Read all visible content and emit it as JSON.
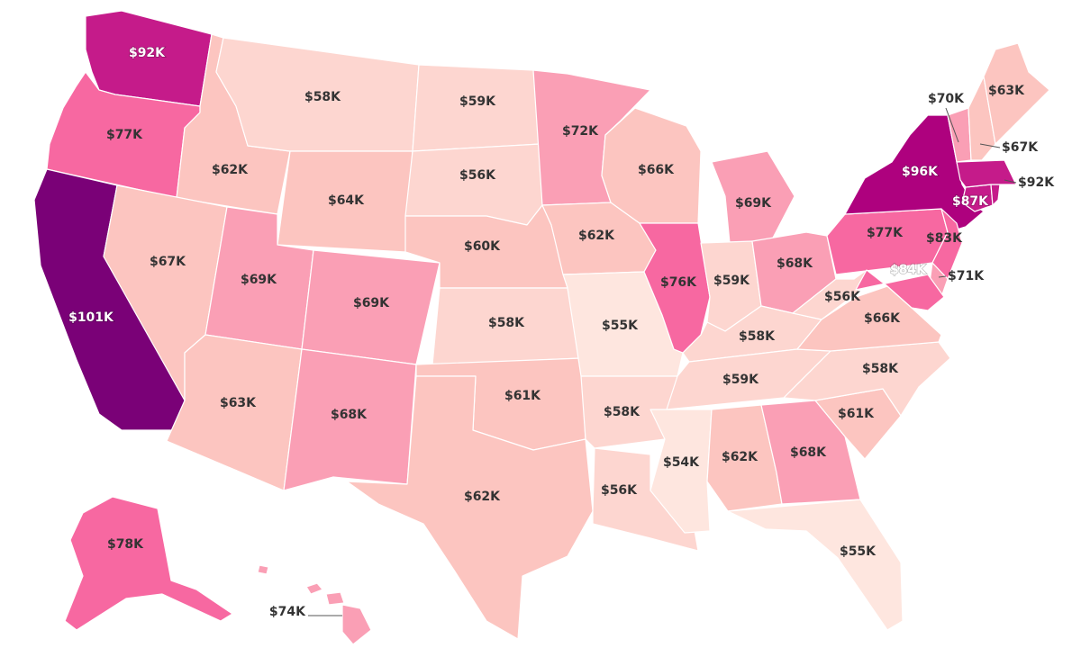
{
  "map": {
    "type": "choropleth",
    "region": "United States",
    "palette": {
      "darkest": "#7a0177",
      "very_high": "#ae017e",
      "high": "#c51b8a",
      "upper": "#f768a1",
      "mid": "#fa9fb5",
      "lower": "#fcc5c0",
      "low": "#fdd6d0",
      "lowest": "#fee6df",
      "border": "#ffffff",
      "label_dark": "#333333",
      "label_light": "#ffffff"
    },
    "states": {
      "WA": {
        "label": "$92K",
        "value": 92
      },
      "OR": {
        "label": "$77K",
        "value": 77
      },
      "CA": {
        "label": "$101K",
        "value": 101
      },
      "ID": {
        "label": "$62K",
        "value": 62
      },
      "NV": {
        "label": "$67K",
        "value": 67
      },
      "MT": {
        "label": "$58K",
        "value": 58
      },
      "WY": {
        "label": "$64K",
        "value": 64
      },
      "UT": {
        "label": "$69K",
        "value": 69
      },
      "AZ": {
        "label": "$63K",
        "value": 63
      },
      "CO": {
        "label": "$69K",
        "value": 69
      },
      "NM": {
        "label": "$68K",
        "value": 68
      },
      "ND": {
        "label": "$59K",
        "value": 59
      },
      "SD": {
        "label": "$56K",
        "value": 56
      },
      "NE": {
        "label": "$60K",
        "value": 60
      },
      "KS": {
        "label": "$58K",
        "value": 58
      },
      "OK": {
        "label": "$61K",
        "value": 61
      },
      "TX": {
        "label": "$62K",
        "value": 62
      },
      "MN": {
        "label": "$72K",
        "value": 72
      },
      "IA": {
        "label": "$62K",
        "value": 62
      },
      "MO": {
        "label": "$55K",
        "value": 55
      },
      "AR": {
        "label": "$58K",
        "value": 58
      },
      "LA": {
        "label": "$56K",
        "value": 56
      },
      "WI": {
        "label": "$66K",
        "value": 66
      },
      "IL": {
        "label": "$76K",
        "value": 76
      },
      "MI": {
        "label": "$69K",
        "value": 69
      },
      "IN": {
        "label": "$59K",
        "value": 59
      },
      "OH": {
        "label": "$68K",
        "value": 68
      },
      "KY": {
        "label": "$58K",
        "value": 58
      },
      "TN": {
        "label": "$59K",
        "value": 59
      },
      "MS": {
        "label": "$54K",
        "value": 54
      },
      "AL": {
        "label": "$62K",
        "value": 62
      },
      "GA": {
        "label": "$68K",
        "value": 68
      },
      "FL": {
        "label": "$55K",
        "value": 55
      },
      "SC": {
        "label": "$61K",
        "value": 61
      },
      "NC": {
        "label": "$58K",
        "value": 58
      },
      "VA": {
        "label": "$66K",
        "value": 66
      },
      "WV": {
        "label": "$56K",
        "value": 56
      },
      "PA": {
        "label": "$77K",
        "value": 77
      },
      "NY": {
        "label": "$96K",
        "value": 96
      },
      "NJ": {
        "label": "$83K",
        "value": 83
      },
      "DE": {
        "label": "$71K",
        "value": 71
      },
      "MD": {
        "label": "$84K",
        "value": 84
      },
      "CT": {
        "label": "$87K",
        "value": 87
      },
      "MA": {
        "label": "$92K",
        "value": 92
      },
      "VT": {
        "label": "$70K",
        "value": 70
      },
      "NH": {
        "label": "$67K",
        "value": 67
      },
      "ME": {
        "label": "$63K",
        "value": 63
      },
      "AK": {
        "label": "$78K",
        "value": 78
      },
      "HI": {
        "label": "$74K",
        "value": 74
      }
    }
  }
}
